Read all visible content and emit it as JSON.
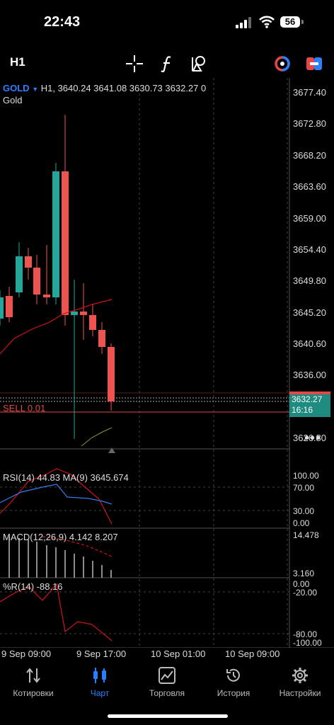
{
  "status_bar": {
    "time": "22:43",
    "battery": "56"
  },
  "toolbar": {
    "timeframe": "H1"
  },
  "chart": {
    "symbol": "GOLD",
    "symbol_info": "H1, 3640.24 3641.08 3630.73 3632.27 0",
    "symbol_desc": "Gold",
    "price_labels": [
      "3677.40",
      "3672.80",
      "3668.20",
      "3663.60",
      "3659.00",
      "3654.40",
      "3649.80",
      "3645.20",
      "3640.60",
      "3636.00",
      "3626.80"
    ],
    "current_price": "3632.27",
    "countdown": "16:16",
    "sell_label": "SELL 0.01",
    "colors": {
      "bull": "#26a69a",
      "bear": "#ef5350",
      "ma": "#d11515",
      "accent": "#2b7fff"
    }
  },
  "rsi": {
    "title": "RSI(14) 44.83 MA(9) 3645.674",
    "levels": [
      "100.00",
      "70.00",
      "30.00",
      "0.00"
    ]
  },
  "macd": {
    "title": "MACD(12,26,9) 4.142 8.207",
    "levels": [
      "14.478",
      "3.160"
    ]
  },
  "wpr": {
    "title": "%R(14) -88.16",
    "levels": [
      "0.00",
      "-20.00",
      "-80.00",
      "-100.00"
    ]
  },
  "time_axis": [
    "9 Sep 09:00",
    "9 Sep 17:00",
    "10 Sep 01:00",
    "10 Sep 09:00"
  ],
  "nav": {
    "items": [
      {
        "label": "Котировки",
        "icon": "quotes-icon"
      },
      {
        "label": "Чарт",
        "icon": "chart-icon"
      },
      {
        "label": "Торговля",
        "icon": "trade-icon"
      },
      {
        "label": "История",
        "icon": "history-icon"
      },
      {
        "label": "Настройки",
        "icon": "settings-icon"
      }
    ],
    "active": "Чарт"
  }
}
